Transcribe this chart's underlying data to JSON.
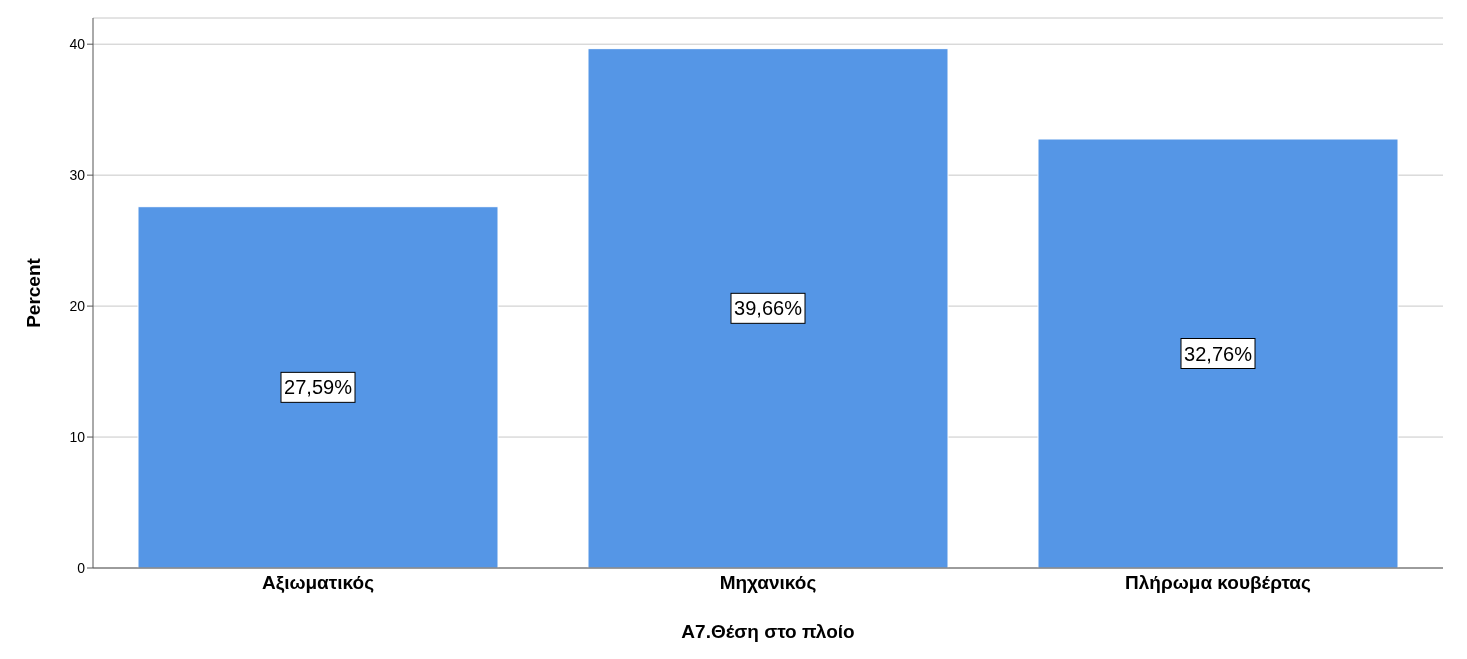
{
  "chart_data": {
    "type": "bar",
    "xlabel": "A7.Θέση στο πλοίο",
    "ylabel": "Percent",
    "categories": [
      "Αξιωματικός",
      "Μηχανικός",
      "Πλήρωμα κουβέρτας"
    ],
    "values": [
      27.59,
      39.66,
      32.76
    ],
    "value_labels": [
      "27,59%",
      "39,66%",
      "32,76%"
    ],
    "color": "#5596e6",
    "ylim": [
      0,
      42
    ],
    "yticks": [
      0,
      10,
      20,
      30,
      40
    ],
    "grid": "y"
  }
}
